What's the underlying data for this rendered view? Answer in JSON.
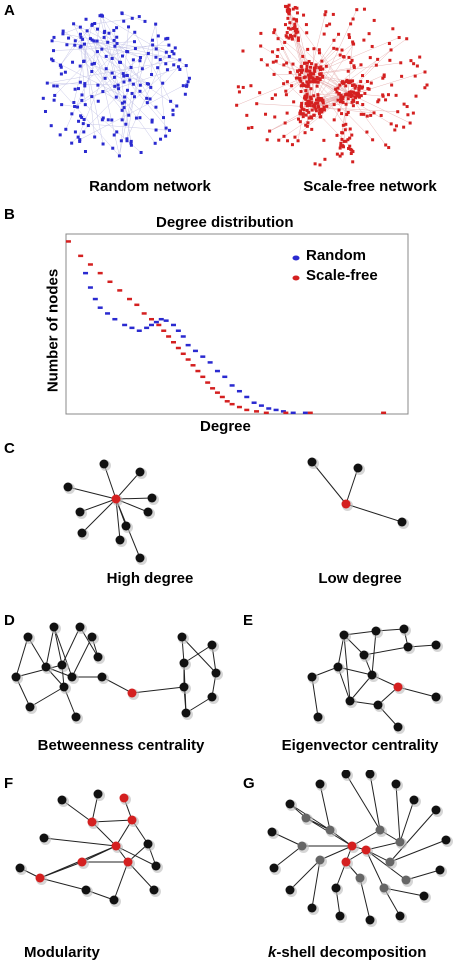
{
  "panels": {
    "a": "A",
    "b": "B",
    "c": "C",
    "d": "D",
    "e": "E",
    "f": "F",
    "g": "G"
  },
  "panel_a": {
    "random_caption": "Random network",
    "scalefree_caption": "Scale-free network",
    "random_color": "#2a2ad0",
    "scalefree_color": "#d42020"
  },
  "chart_data": {
    "type": "scatter",
    "title": "Degree distribution",
    "xlabel": "Degree",
    "ylabel": "Number of nodes",
    "series": [
      {
        "name": "Random",
        "color": "#2a2ad0",
        "points": [
          [
            16,
            98
          ],
          [
            20,
            88
          ],
          [
            24,
            80
          ],
          [
            28,
            74
          ],
          [
            34,
            70
          ],
          [
            40,
            66
          ],
          [
            48,
            62
          ],
          [
            54,
            60
          ],
          [
            60,
            58
          ],
          [
            66,
            60
          ],
          [
            70,
            62
          ],
          [
            74,
            64
          ],
          [
            78,
            66
          ],
          [
            82,
            65
          ],
          [
            88,
            62
          ],
          [
            92,
            58
          ],
          [
            96,
            54
          ],
          [
            100,
            48
          ],
          [
            106,
            44
          ],
          [
            112,
            40
          ],
          [
            118,
            36
          ],
          [
            124,
            30
          ],
          [
            130,
            26
          ],
          [
            136,
            20
          ],
          [
            142,
            16
          ],
          [
            148,
            12
          ],
          [
            154,
            8
          ],
          [
            160,
            6
          ],
          [
            166,
            4
          ],
          [
            172,
            3
          ],
          [
            178,
            2
          ],
          [
            186,
            1
          ],
          [
            196,
            1
          ]
        ]
      },
      {
        "name": "Scale-free",
        "color": "#d42020",
        "points": [
          [
            2,
            120
          ],
          [
            12,
            110
          ],
          [
            20,
            104
          ],
          [
            28,
            98
          ],
          [
            36,
            92
          ],
          [
            44,
            86
          ],
          [
            52,
            80
          ],
          [
            58,
            76
          ],
          [
            64,
            70
          ],
          [
            70,
            66
          ],
          [
            76,
            62
          ],
          [
            80,
            58
          ],
          [
            84,
            54
          ],
          [
            88,
            50
          ],
          [
            92,
            46
          ],
          [
            96,
            42
          ],
          [
            100,
            38
          ],
          [
            104,
            34
          ],
          [
            108,
            30
          ],
          [
            112,
            26
          ],
          [
            116,
            22
          ],
          [
            120,
            18
          ],
          [
            124,
            15
          ],
          [
            128,
            12
          ],
          [
            132,
            9
          ],
          [
            136,
            7
          ],
          [
            142,
            5
          ],
          [
            148,
            3
          ],
          [
            156,
            2
          ],
          [
            164,
            1
          ],
          [
            180,
            1
          ],
          [
            200,
            1
          ],
          [
            260,
            1
          ]
        ]
      }
    ]
  },
  "panel_c": {
    "high_caption": "High degree",
    "low_caption": "Low degree",
    "node_color": "#111111",
    "highlight_color": "#d42020"
  },
  "panel_d": {
    "caption": "Betweenness centrality"
  },
  "panel_e": {
    "caption": "Eigenvector centrality"
  },
  "panel_f": {
    "caption": "Modularity"
  },
  "panel_g": {
    "caption_k": "k",
    "caption_rest": "-shell decomposition"
  }
}
